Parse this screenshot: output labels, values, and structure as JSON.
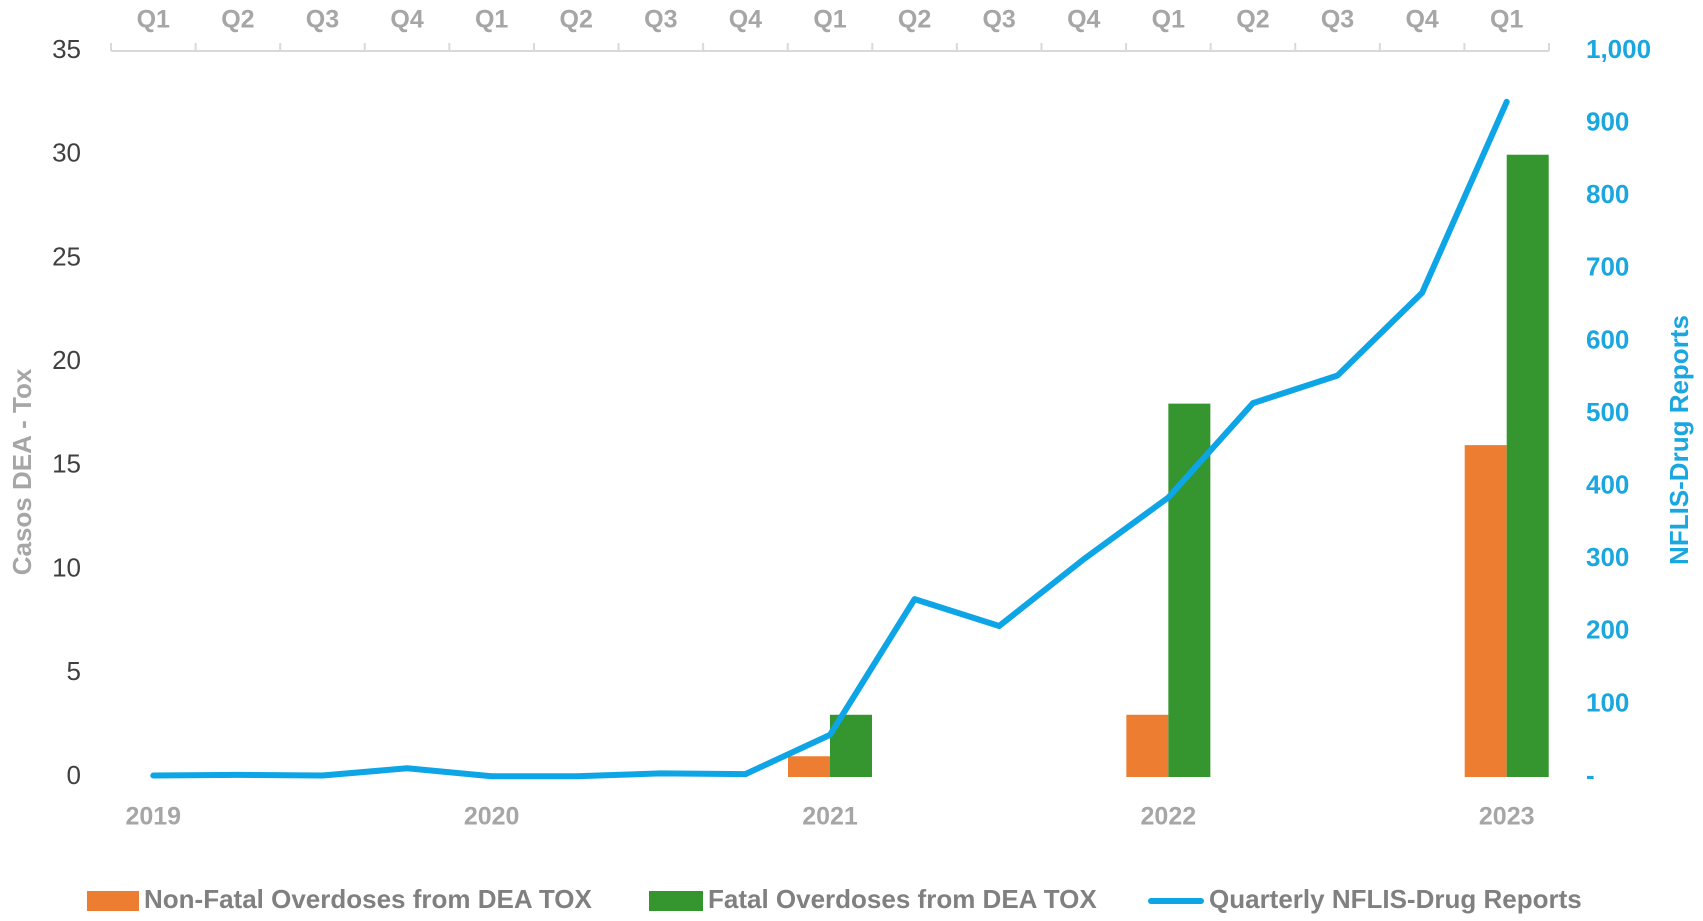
{
  "chart_data": {
    "type": "bar_line",
    "categories": [
      "Q1",
      "Q2",
      "Q3",
      "Q4",
      "Q1",
      "Q2",
      "Q3",
      "Q4",
      "Q1",
      "Q2",
      "Q3",
      "Q4",
      "Q1",
      "Q2",
      "Q3",
      "Q4",
      "Q1"
    ],
    "x_labels": [
      "2019",
      null,
      null,
      null,
      "2020",
      null,
      null,
      null,
      "2021",
      null,
      null,
      null,
      "2022",
      null,
      null,
      null,
      "2023"
    ],
    "ylabel": "Casos DEA - Tox",
    "y2label": "NFLIS-Drug Reports",
    "ylim": [
      0,
      35
    ],
    "yticks": [
      0,
      5,
      10,
      15,
      20,
      25,
      30,
      35
    ],
    "y2lim": [
      0,
      1000
    ],
    "y2ticks": [
      {
        "value": 0,
        "label": "-"
      },
      100,
      200,
      300,
      400,
      500,
      600,
      700,
      800,
      900,
      {
        "value": 1000,
        "label": "1,000"
      }
    ],
    "series": [
      {
        "name": "Non-Fatal Overdoses from DEA TOX",
        "color": "#ed7d31",
        "type": "bar",
        "values": [
          null,
          null,
          null,
          null,
          null,
          null,
          null,
          null,
          1,
          null,
          null,
          null,
          3,
          null,
          null,
          null,
          16
        ]
      },
      {
        "name": "Fatal Overdoses from DEA TOX",
        "color": "#35952f",
        "type": "bar",
        "values": [
          null,
          null,
          null,
          null,
          null,
          null,
          null,
          null,
          3,
          null,
          null,
          null,
          18,
          null,
          null,
          null,
          30
        ]
      },
      {
        "name": "Quarterly NFLIS-Drug Reports",
        "color": "#0ea5e6",
        "type": "line",
        "axis": "y2",
        "values": [
          2,
          3,
          2,
          12,
          1,
          1,
          5,
          4,
          58,
          245,
          208,
          300,
          385,
          515,
          553,
          667,
          930
        ]
      }
    ],
    "legend": "bottom"
  }
}
